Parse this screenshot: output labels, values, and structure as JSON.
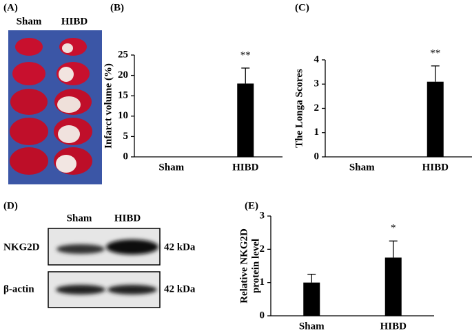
{
  "panel_a": {
    "label": "(A)",
    "columns": [
      "Sham",
      "HIBD"
    ]
  },
  "panel_d": {
    "label": "(D)",
    "columns": [
      "Sham",
      "HIBD"
    ],
    "rows": [
      {
        "name": "NKG2D",
        "size": "42 kDa"
      },
      {
        "name": "β-actin",
        "size": "42 kDa"
      }
    ]
  },
  "chart_data": [
    {
      "type": "bar",
      "panel": "(B)",
      "ylabel": [
        "Infarct volume (%)"
      ],
      "categories": [
        "Sham",
        "HIBD"
      ],
      "values": [
        0,
        18
      ],
      "errors": [
        0,
        3.8
      ],
      "annotations": [
        null,
        "**"
      ],
      "color": "#000000",
      "ylim": [
        0,
        25
      ],
      "yticks": [
        0,
        5,
        10,
        15,
        20,
        25
      ]
    },
    {
      "type": "bar",
      "panel": "(C)",
      "ylabel": [
        "The Longa Scores"
      ],
      "categories": [
        "Sham",
        "HIBD"
      ],
      "values": [
        0,
        3.1
      ],
      "errors": [
        0,
        0.65
      ],
      "annotations": [
        null,
        "**"
      ],
      "color": "#000000",
      "ylim": [
        0,
        4
      ],
      "yticks": [
        0,
        1,
        2,
        3,
        4
      ]
    },
    {
      "type": "bar",
      "panel": "(E)",
      "ylabel": [
        "Relative NKG2D",
        "protein level"
      ],
      "categories": [
        "Sham",
        "HIBD"
      ],
      "values": [
        1,
        1.75
      ],
      "errors": [
        0.25,
        0.5
      ],
      "annotations": [
        null,
        "*"
      ],
      "color": "#000000",
      "ylim": [
        0,
        3
      ],
      "yticks": [
        0,
        1,
        2,
        3
      ]
    }
  ]
}
